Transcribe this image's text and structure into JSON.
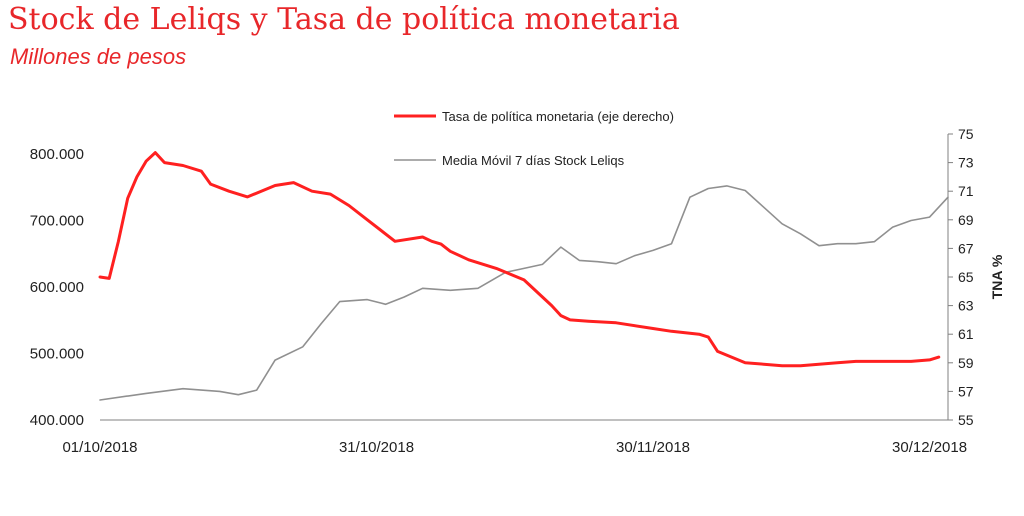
{
  "header": {
    "title": "Stock de Leliqs y Tasa de política monetaria",
    "subtitle": "Millones de pesos"
  },
  "chart_data": {
    "type": "line",
    "title": "Stock de Leliqs y Tasa de política monetaria",
    "subtitle": "Millones de pesos",
    "x_range": [
      "01/10/2018",
      "01/01/2019"
    ],
    "x_ticks": [
      "01/10/2018",
      "31/10/2018",
      "30/11/2018",
      "30/12/2018"
    ],
    "y_left": {
      "ticks": [
        "400.000",
        "500.000",
        "600.000",
        "700.000",
        "800.000"
      ],
      "range": [
        400000,
        830000
      ]
    },
    "y_right": {
      "label": "TNA %",
      "ticks": [
        "55",
        "57",
        "59",
        "61",
        "63",
        "65",
        "67",
        "69",
        "71",
        "73",
        "75"
      ],
      "range": [
        55,
        75
      ]
    },
    "legend_position": "top-center",
    "grid": false,
    "series": [
      {
        "name": "Tasa de política monetaria (eje derecho)",
        "axis": "right",
        "color": "#ff2020",
        "x": [
          "01/10/2018",
          "02/10/2018",
          "03/10/2018",
          "04/10/2018",
          "05/10/2018",
          "06/10/2018",
          "07/10/2018",
          "08/10/2018",
          "10/10/2018",
          "12/10/2018",
          "13/10/2018",
          "15/10/2018",
          "17/10/2018",
          "20/10/2018",
          "22/10/2018",
          "24/10/2018",
          "26/10/2018",
          "28/10/2018",
          "30/10/2018",
          "02/11/2018",
          "05/11/2018",
          "06/11/2018",
          "07/11/2018",
          "08/11/2018",
          "10/11/2018",
          "13/11/2018",
          "16/11/2018",
          "19/11/2018",
          "20/11/2018",
          "21/11/2018",
          "23/11/2018",
          "26/11/2018",
          "30/11/2018",
          "02/12/2018",
          "05/12/2018",
          "06/12/2018",
          "07/12/2018",
          "10/12/2018",
          "12/12/2018",
          "14/12/2018",
          "16/12/2018",
          "18/12/2018",
          "20/12/2018",
          "22/12/2018",
          "24/12/2018",
          "26/12/2018",
          "28/12/2018",
          "30/12/2018",
          "31/12/2018"
        ],
        "values": [
          65.0,
          64.9,
          67.5,
          70.5,
          72.0,
          73.1,
          73.7,
          73.0,
          72.8,
          72.4,
          71.5,
          71.0,
          70.6,
          71.4,
          71.6,
          71.0,
          70.8,
          70.0,
          69.0,
          67.5,
          67.8,
          67.5,
          67.3,
          66.8,
          66.2,
          65.6,
          64.8,
          63.0,
          62.3,
          62.0,
          61.9,
          61.8,
          61.4,
          61.2,
          61.0,
          60.8,
          59.8,
          59.0,
          58.9,
          58.8,
          58.8,
          58.9,
          59.0,
          59.1,
          59.1,
          59.1,
          59.1,
          59.2,
          59.4
        ]
      },
      {
        "name": "Media Móvil 7 días Stock Leliqs",
        "axis": "left",
        "color": "#909090",
        "x": [
          "01/10/2018",
          "06/10/2018",
          "10/10/2018",
          "14/10/2018",
          "16/10/2018",
          "18/10/2018",
          "20/10/2018",
          "23/10/2018",
          "25/10/2018",
          "27/10/2018",
          "30/10/2018",
          "01/11/2018",
          "03/11/2018",
          "05/11/2018",
          "08/11/2018",
          "11/11/2018",
          "14/11/2018",
          "16/11/2018",
          "18/11/2018",
          "20/11/2018",
          "22/11/2018",
          "24/11/2018",
          "26/11/2018",
          "28/11/2018",
          "30/11/2018",
          "02/12/2018",
          "04/12/2018",
          "06/12/2018",
          "08/12/2018",
          "10/12/2018",
          "12/12/2018",
          "14/12/2018",
          "16/12/2018",
          "18/12/2018",
          "20/12/2018",
          "22/12/2018",
          "24/12/2018",
          "26/12/2018",
          "28/12/2018",
          "30/12/2018",
          "01/01/2019"
        ],
        "values": [
          430000,
          440000,
          447000,
          443000,
          438000,
          445000,
          490000,
          510000,
          545000,
          578000,
          581000,
          574000,
          585000,
          598000,
          595000,
          598000,
          622000,
          628000,
          634000,
          660000,
          640000,
          638000,
          635000,
          647000,
          655000,
          665000,
          735000,
          748000,
          752000,
          745000,
          720000,
          695000,
          680000,
          662000,
          665000,
          665000,
          668000,
          690000,
          700000,
          705000,
          735000
        ]
      }
    ]
  }
}
